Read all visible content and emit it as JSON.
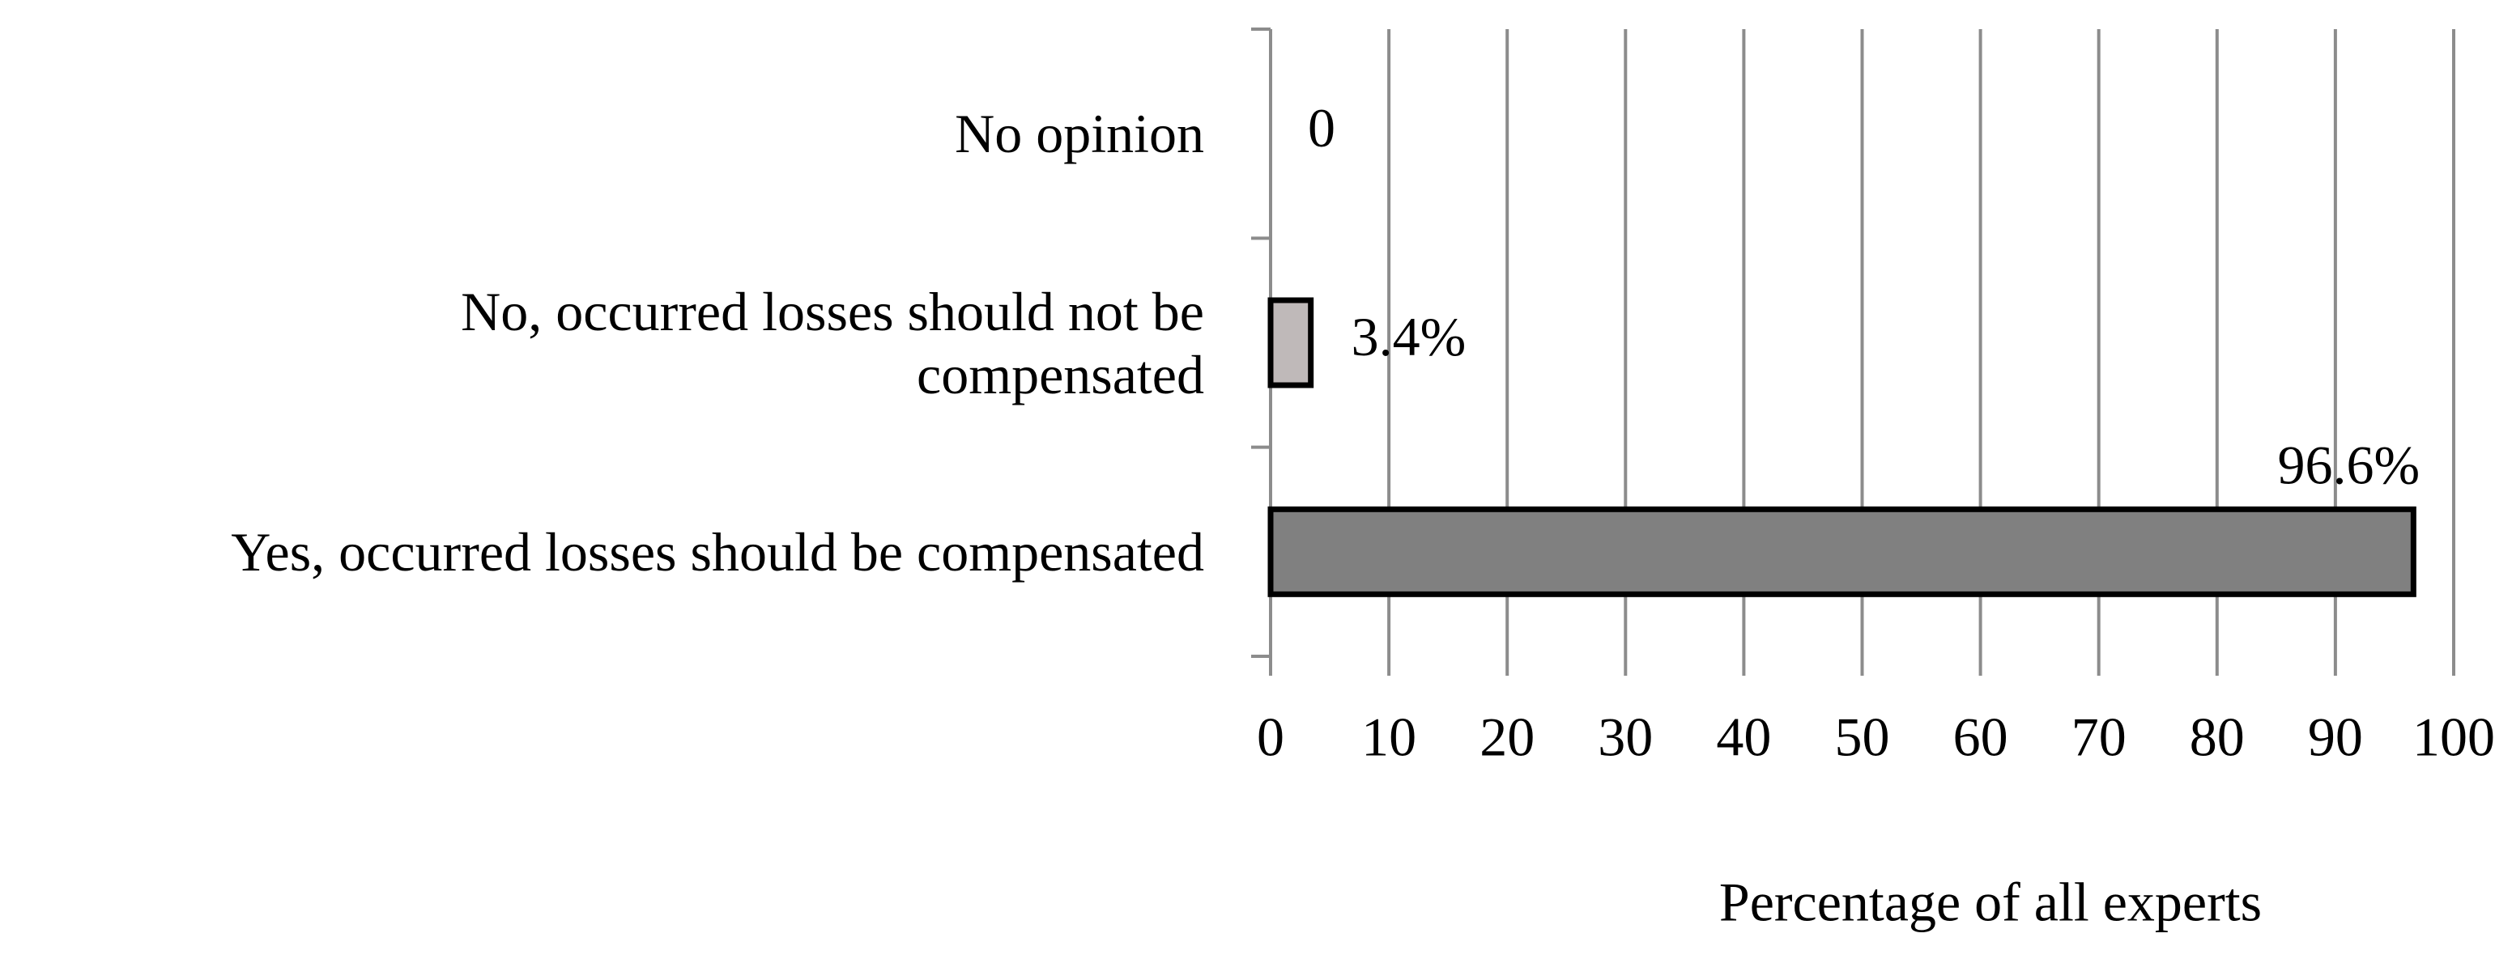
{
  "chart_data": {
    "type": "barh",
    "categories": [
      "No opinion",
      "No, occurred losses should not be\ncompensated",
      "Yes, occurred losses should be compensated"
    ],
    "values": [
      0,
      3.4,
      96.6
    ],
    "value_labels": [
      "0",
      "3.4%",
      "96.6%"
    ],
    "colors": [
      "#a6a6a6",
      "#bfb9b9",
      "#808080"
    ],
    "xlabel": "Percentage of all experts",
    "xlim": [
      0,
      100
    ],
    "xticks": [
      0,
      10,
      20,
      30,
      40,
      50,
      60,
      70,
      80,
      90,
      100
    ],
    "grid": true
  }
}
